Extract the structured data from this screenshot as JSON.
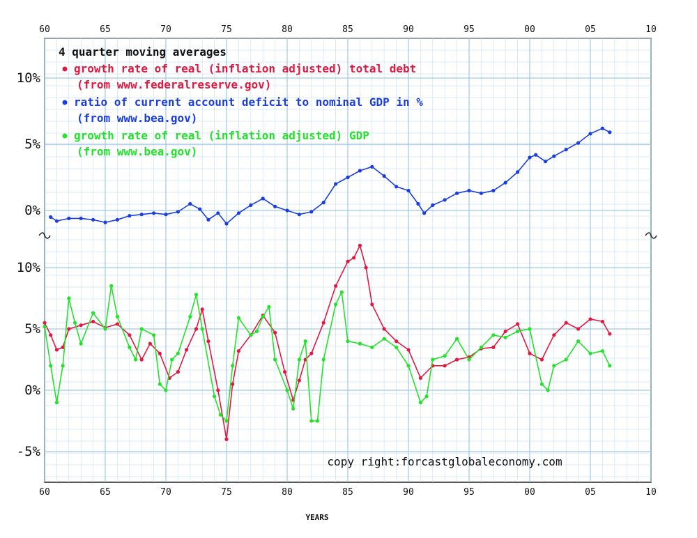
{
  "chart_data": {
    "type": "line",
    "title": "4 quarter moving averages",
    "xlabel": "YEARS",
    "x_ticks": [
      "60",
      "65",
      "70",
      "75",
      "80",
      "85",
      "90",
      "95",
      "00",
      "05",
      "10"
    ],
    "xlim": [
      1960,
      2010
    ],
    "copyright": "copy right:forcastgloba​leconomy.com",
    "panels": [
      {
        "id": "upper",
        "ylim": [
          -2,
          13
        ],
        "y_ticks": [
          {
            "v": 10,
            "label": "10%"
          },
          {
            "v": 5,
            "label": "5%"
          },
          {
            "v": 0,
            "label": "0%"
          }
        ],
        "series": [
          {
            "key": "deficit",
            "name": "ratio of current account deficit to nominal GDP in %",
            "source": "(from www.bea.gov)",
            "color": "#1a3de0",
            "points": [
              [
                1960.5,
                -0.5
              ],
              [
                1961,
                -0.8
              ],
              [
                1962,
                -0.6
              ],
              [
                1963,
                -0.6
              ],
              [
                1964,
                -0.7
              ],
              [
                1965,
                -0.9
              ],
              [
                1966,
                -0.7
              ],
              [
                1967,
                -0.4
              ],
              [
                1968,
                -0.3
              ],
              [
                1969,
                -0.2
              ],
              [
                1970,
                -0.3
              ],
              [
                1971,
                -0.1
              ],
              [
                1972,
                0.5
              ],
              [
                1972.8,
                0.1
              ],
              [
                1973.5,
                -0.7
              ],
              [
                1974.3,
                -0.2
              ],
              [
                1975,
                -1.0
              ],
              [
                1976,
                -0.2
              ],
              [
                1977,
                0.4
              ],
              [
                1978,
                0.9
              ],
              [
                1979,
                0.3
              ],
              [
                1980,
                0.0
              ],
              [
                1981,
                -0.3
              ],
              [
                1982,
                -0.1
              ],
              [
                1983,
                0.6
              ],
              [
                1984,
                2.0
              ],
              [
                1985,
                2.5
              ],
              [
                1986,
                3.0
              ],
              [
                1987,
                3.3
              ],
              [
                1988,
                2.6
              ],
              [
                1989,
                1.8
              ],
              [
                1990,
                1.5
              ],
              [
                1990.8,
                0.5
              ],
              [
                1991.3,
                -0.2
              ],
              [
                1992,
                0.4
              ],
              [
                1993,
                0.8
              ],
              [
                1994,
                1.3
              ],
              [
                1995,
                1.5
              ],
              [
                1996,
                1.3
              ],
              [
                1997,
                1.5
              ],
              [
                1998,
                2.1
              ],
              [
                1999,
                2.9
              ],
              [
                2000,
                4.0
              ],
              [
                2000.5,
                4.2
              ],
              [
                2001.3,
                3.7
              ],
              [
                2002,
                4.1
              ],
              [
                2003,
                4.6
              ],
              [
                2004,
                5.1
              ],
              [
                2005,
                5.8
              ],
              [
                2006,
                6.2
              ],
              [
                2006.6,
                5.9
              ]
            ]
          }
        ]
      },
      {
        "id": "lower",
        "ylim": [
          -7.5,
          12.5
        ],
        "y_ticks": [
          {
            "v": 10,
            "label": "10%"
          },
          {
            "v": 5,
            "label": "5%"
          },
          {
            "v": 0,
            "label": "0%"
          },
          {
            "v": -5,
            "label": "-5%"
          }
        ],
        "series": [
          {
            "key": "debt",
            "name": "growth rate of real (inflation adjusted) total debt",
            "source": "(from www.federalreserve.gov)",
            "color": "#e3183f",
            "points": [
              [
                1960,
                5.5
              ],
              [
                1960.5,
                4.5
              ],
              [
                1961,
                3.3
              ],
              [
                1961.5,
                3.5
              ],
              [
                1962,
                5.0
              ],
              [
                1963,
                5.3
              ],
              [
                1964,
                5.6
              ],
              [
                1965,
                5.1
              ],
              [
                1966,
                5.4
              ],
              [
                1967,
                4.5
              ],
              [
                1968,
                2.5
              ],
              [
                1968.7,
                3.8
              ],
              [
                1969.5,
                3.0
              ],
              [
                1970.3,
                1.0
              ],
              [
                1971,
                1.5
              ],
              [
                1971.7,
                3.3
              ],
              [
                1972.5,
                5.0
              ],
              [
                1973,
                6.6
              ],
              [
                1973.5,
                4.0
              ],
              [
                1974.3,
                0.0
              ],
              [
                1975,
                -4.0
              ],
              [
                1975.5,
                0.5
              ],
              [
                1976,
                3.2
              ],
              [
                1977,
                4.5
              ],
              [
                1978,
                6.1
              ],
              [
                1979,
                4.7
              ],
              [
                1979.8,
                1.5
              ],
              [
                1980.5,
                -0.8
              ],
              [
                1981,
                0.8
              ],
              [
                1981.5,
                2.5
              ],
              [
                1982,
                3.0
              ],
              [
                1983,
                5.5
              ],
              [
                1984,
                8.5
              ],
              [
                1985,
                10.5
              ],
              [
                1985.5,
                10.8
              ],
              [
                1986,
                11.8
              ],
              [
                1986.5,
                10.0
              ],
              [
                1987,
                7.0
              ],
              [
                1988,
                5.0
              ],
              [
                1989,
                4.0
              ],
              [
                1990,
                3.3
              ],
              [
                1991,
                1.0
              ],
              [
                1992,
                2.0
              ],
              [
                1993,
                2.0
              ],
              [
                1994,
                2.5
              ],
              [
                1995,
                2.7
              ],
              [
                1996,
                3.4
              ],
              [
                1997,
                3.5
              ],
              [
                1998,
                4.8
              ],
              [
                1999,
                5.4
              ],
              [
                2000,
                3.0
              ],
              [
                2001,
                2.5
              ],
              [
                2002,
                4.5
              ],
              [
                2003,
                5.5
              ],
              [
                2004,
                5.0
              ],
              [
                2005,
                5.8
              ],
              [
                2006,
                5.6
              ],
              [
                2006.6,
                4.6
              ]
            ]
          },
          {
            "key": "gdp",
            "name": "growth rate of real (inflation adjusted) GDP",
            "source": "(from www.bea.gov)",
            "color": "#22e32a",
            "points": [
              [
                1960,
                5.2
              ],
              [
                1960.5,
                2.0
              ],
              [
                1961,
                -1.0
              ],
              [
                1961.5,
                2.0
              ],
              [
                1962,
                7.5
              ],
              [
                1962.5,
                5.5
              ],
              [
                1963,
                3.8
              ],
              [
                1964,
                6.3
              ],
              [
                1965,
                5.0
              ],
              [
                1965.5,
                8.5
              ],
              [
                1966,
                6.0
              ],
              [
                1967,
                3.5
              ],
              [
                1967.5,
                2.5
              ],
              [
                1968,
                5.0
              ],
              [
                1969,
                4.5
              ],
              [
                1969.5,
                0.5
              ],
              [
                1970,
                0.0
              ],
              [
                1970.5,
                2.5
              ],
              [
                1971,
                3.0
              ],
              [
                1972,
                6.0
              ],
              [
                1972.5,
                7.8
              ],
              [
                1973,
                5.0
              ],
              [
                1974,
                -0.5
              ],
              [
                1974.5,
                -2.0
              ],
              [
                1975,
                -2.5
              ],
              [
                1975.5,
                2.0
              ],
              [
                1976,
                5.9
              ],
              [
                1977,
                4.5
              ],
              [
                1977.5,
                4.8
              ],
              [
                1978,
                6.0
              ],
              [
                1978.5,
                6.8
              ],
              [
                1979,
                2.5
              ],
              [
                1980,
                0.0
              ],
              [
                1980.5,
                -1.5
              ],
              [
                1981,
                2.5
              ],
              [
                1981.5,
                4.0
              ],
              [
                1982,
                -2.5
              ],
              [
                1982.5,
                -2.5
              ],
              [
                1983,
                2.5
              ],
              [
                1984,
                7.0
              ],
              [
                1984.5,
                8.0
              ],
              [
                1985,
                4.0
              ],
              [
                1986,
                3.8
              ],
              [
                1987,
                3.5
              ],
              [
                1988,
                4.2
              ],
              [
                1989,
                3.5
              ],
              [
                1990,
                2.0
              ],
              [
                1991,
                -1.0
              ],
              [
                1991.5,
                -0.5
              ],
              [
                1992,
                2.5
              ],
              [
                1993,
                2.8
              ],
              [
                1994,
                4.2
              ],
              [
                1995,
                2.5
              ],
              [
                1996,
                3.5
              ],
              [
                1997,
                4.5
              ],
              [
                1998,
                4.3
              ],
              [
                1999,
                4.8
              ],
              [
                2000,
                5.0
              ],
              [
                2001,
                0.5
              ],
              [
                2001.5,
                0.0
              ],
              [
                2002,
                2.0
              ],
              [
                2003,
                2.5
              ],
              [
                2004,
                4.0
              ],
              [
                2005,
                3.0
              ],
              [
                2006,
                3.2
              ],
              [
                2006.6,
                2.0
              ]
            ]
          }
        ]
      }
    ],
    "legend": [
      {
        "key": "debt",
        "text": "growth rate of real (inflation adjusted) total debt",
        "source": "(from www.federalreserve.gov)",
        "color": "#e3183f"
      },
      {
        "key": "deficit",
        "text": "ratio of current account deficit to nominal GDP in %",
        "source": "(from www.bea.gov)",
        "color": "#1a3de0"
      },
      {
        "key": "gdp",
        "text": "growth rate of real (inflation adjusted) GDP",
        "source": "(from www.bea.gov)",
        "color": "#22e32a"
      }
    ]
  }
}
